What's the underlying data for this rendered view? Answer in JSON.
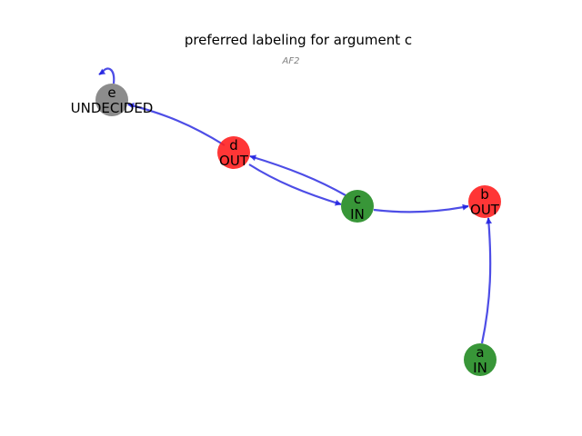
{
  "title": "preferred labeling for argument c",
  "subtitle": "AF2",
  "colors": {
    "IN": "#228B22",
    "OUT": "#ff2020",
    "UNDECIDED": "#808080",
    "edge": "#2020e0"
  },
  "nodes": [
    {
      "id": "e",
      "label": "UNDECIDED"
    },
    {
      "id": "d",
      "label": "OUT"
    },
    {
      "id": "c",
      "label": "IN"
    },
    {
      "id": "b",
      "label": "OUT"
    },
    {
      "id": "a",
      "label": "IN"
    }
  ],
  "edges": [
    {
      "from": "e",
      "to": "e"
    },
    {
      "from": "d",
      "to": "e"
    },
    {
      "from": "d",
      "to": "c"
    },
    {
      "from": "c",
      "to": "d"
    },
    {
      "from": "c",
      "to": "b"
    },
    {
      "from": "a",
      "to": "b"
    }
  ]
}
